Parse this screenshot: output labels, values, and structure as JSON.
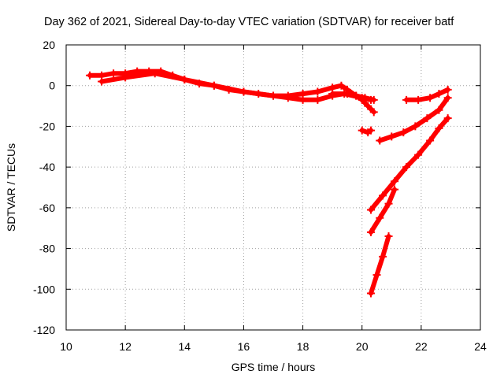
{
  "chart_data": {
    "type": "scatter",
    "title": "Day 362 of 2021, Sidereal Day-to-day VTEC variation (SDTVAR) for receiver batf",
    "xlabel": "GPS time / hours",
    "ylabel": "SDTVAR / TECUs",
    "xlim": [
      10,
      24
    ],
    "ylim": [
      -120,
      20
    ],
    "xticks": [
      "10",
      "12",
      "14",
      "16",
      "18",
      "20",
      "22",
      "24"
    ],
    "yticks": [
      "-120",
      "-100",
      "-80",
      "-60",
      "-40",
      "-20",
      "0",
      "20"
    ],
    "grid": true,
    "color": "#ff0000",
    "series": [
      {
        "x": [
          10.8,
          11.2,
          11.6,
          12.0,
          12.4,
          12.8,
          13.2,
          13.6,
          14.0,
          14.5,
          15.0,
          15.5,
          16.0,
          16.5,
          17.0,
          17.5,
          18.0,
          18.5,
          19.0,
          19.4,
          20.0,
          20.3
        ],
        "y": [
          5,
          5,
          6,
          6,
          7,
          7,
          7,
          5,
          3,
          1,
          0,
          -2,
          -3,
          -4,
          -5,
          -6,
          -7,
          -7,
          -5,
          -4,
          -6,
          -7
        ]
      },
      {
        "x": [
          11.2,
          12.0,
          13.0,
          14.0,
          15.0,
          16.0,
          17.0,
          17.5,
          18.0,
          18.5,
          19.0,
          19.3,
          19.5,
          19.8,
          20.0,
          20.2,
          20.4
        ],
        "y": [
          2,
          4,
          6,
          3,
          0,
          -3,
          -5,
          -5,
          -4,
          -3,
          -1,
          0,
          -2,
          -5,
          -7,
          -10,
          -13
        ]
      },
      {
        "x": [
          19.0,
          19.5,
          19.8,
          20.1,
          20.4
        ],
        "y": [
          -4,
          -4,
          -5,
          -6,
          -7
        ]
      },
      {
        "x": [
          20.0,
          20.2,
          20.3
        ],
        "y": [
          -22,
          -23,
          -22
        ]
      },
      {
        "x": [
          20.6,
          21.0,
          21.4,
          21.8,
          22.2,
          22.6,
          22.9
        ],
        "y": [
          -27,
          -25,
          -23,
          -20,
          -16,
          -12,
          -6
        ]
      },
      {
        "x": [
          21.5,
          21.9,
          22.3,
          22.6,
          22.9
        ],
        "y": [
          -7,
          -7,
          -6,
          -4,
          -2
        ]
      },
      {
        "x": [
          20.3,
          20.7,
          21.1,
          21.5,
          21.9,
          22.3,
          22.6,
          22.9
        ],
        "y": [
          -61,
          -54,
          -47,
          -40,
          -34,
          -27,
          -21,
          -16
        ]
      },
      {
        "x": [
          20.3,
          20.6,
          20.9,
          21.1
        ],
        "y": [
          -72,
          -65,
          -58,
          -51
        ]
      },
      {
        "x": [
          20.3,
          20.5,
          20.7,
          20.9
        ],
        "y": [
          -102,
          -93,
          -84,
          -74
        ]
      }
    ]
  }
}
